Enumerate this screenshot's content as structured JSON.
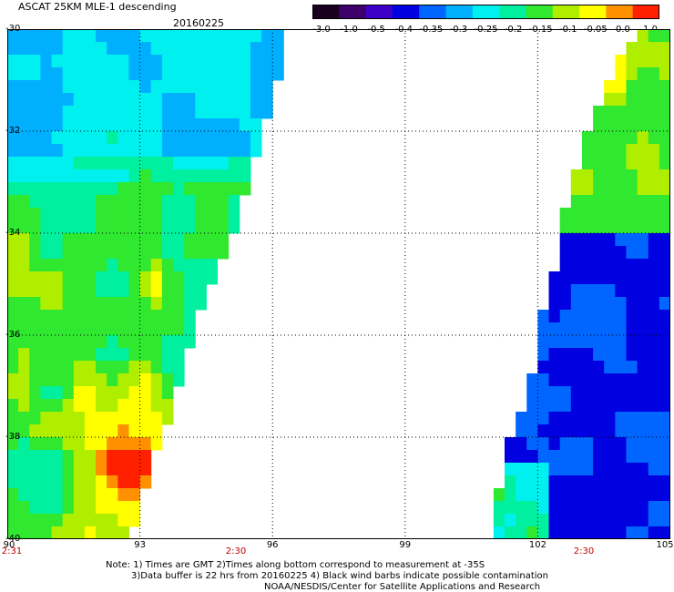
{
  "title": "ASCAT 25KM MLE-1 descending",
  "date": "20160225",
  "lat_labels": [
    "-30",
    "-32",
    "-34",
    "-36",
    "-38",
    "-40"
  ],
  "lon_labels": [
    "90",
    "93",
    "96",
    "99",
    "102",
    "105"
  ],
  "time_labels": [
    "2:31",
    "2:30",
    "2:30"
  ],
  "colorbar": {
    "labels": [
      "-3.0",
      "-1.0",
      "-0.5",
      "-0.4",
      "-0.35",
      "-0.3",
      "-0.25",
      "-0.2",
      "-0.15",
      "-0.1",
      "-0.05",
      "0.0",
      "1.0"
    ],
    "colors": [
      "#1a0020",
      "#3d006a",
      "#3d00c8",
      "#0000e0",
      "#0066ff",
      "#00b0ff",
      "#00f0f0",
      "#00f0a0",
      "#30e830",
      "#b0ee00",
      "#ffff00",
      "#ff9000",
      "#ff2000"
    ]
  },
  "notes": [
    "Note: 1) Times are GMT 2)Times along bottom correspond to measurement at -35S",
    "3)Data buffer is 22 hrs from 20160225 4) Black wind barbs indicate possible contamination",
    "NOAA/NESDIS/Center for Satellite Applications and Research"
  ],
  "map": {
    "lon_range": [
      90,
      105
    ],
    "lat_range": [
      -40,
      -30
    ],
    "swath_west_edge": [
      [
        -30,
        96.4
      ],
      [
        -32,
        95.8
      ],
      [
        -34,
        95.1
      ],
      [
        -35,
        94.6
      ],
      [
        -36,
        94.2
      ],
      [
        -37,
        93.9
      ],
      [
        -38,
        93.5
      ],
      [
        -39,
        93.1
      ],
      [
        -40,
        92.8
      ]
    ],
    "swath_east_edge": [
      [
        -30,
        104.2
      ],
      [
        -32,
        103.1
      ],
      [
        -34,
        102.5
      ],
      [
        -35,
        102.3
      ],
      [
        -36,
        102.0
      ],
      [
        -37,
        101.8
      ],
      [
        -38,
        101.4
      ],
      [
        -39,
        101.1
      ],
      [
        -40,
        100.9
      ]
    ]
  }
}
